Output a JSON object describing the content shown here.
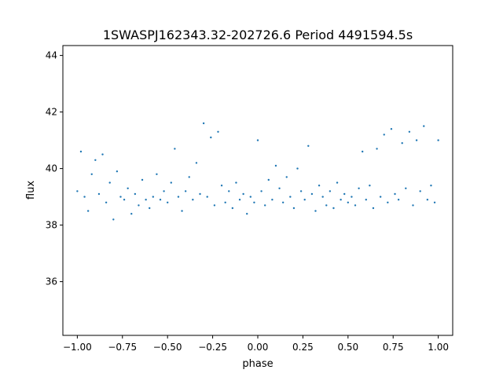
{
  "chart_data": {
    "type": "scatter",
    "title": "1SWASPJ162343.32-202726.6 Period 4491594.5s",
    "xlabel": "phase",
    "ylabel": "flux",
    "xlim": [
      -1.08,
      1.08
    ],
    "ylim": [
      34.1,
      44.35
    ],
    "xticks": [
      -1.0,
      -0.75,
      -0.5,
      -0.25,
      0.0,
      0.25,
      0.5,
      0.75,
      1.0
    ],
    "xtick_labels": [
      "−1.00",
      "−0.75",
      "−0.50",
      "−0.25",
      "0.00",
      "0.25",
      "0.50",
      "0.75",
      "1.00"
    ],
    "yticks": [
      36,
      38,
      40,
      42,
      44
    ],
    "ytick_labels": [
      "36",
      "38",
      "40",
      "42",
      "44"
    ],
    "grid": false,
    "marker_color": "#1f77b4",
    "series": [
      {
        "points": [
          [
            -1.0,
            39.2
          ],
          [
            -0.98,
            40.6
          ],
          [
            -0.96,
            39.0
          ],
          [
            -0.94,
            38.5
          ],
          [
            -0.92,
            39.8
          ],
          [
            -0.9,
            40.3
          ],
          [
            -0.88,
            39.1
          ],
          [
            -0.86,
            40.5
          ],
          [
            -0.84,
            38.8
          ],
          [
            -0.82,
            39.5
          ],
          [
            -0.8,
            38.2
          ],
          [
            -0.78,
            39.9
          ],
          [
            -0.76,
            39.0
          ],
          [
            -0.74,
            38.9
          ],
          [
            -0.72,
            39.3
          ],
          [
            -0.7,
            38.4
          ],
          [
            -0.68,
            39.1
          ],
          [
            -0.66,
            38.7
          ],
          [
            -0.64,
            39.6
          ],
          [
            -0.62,
            38.9
          ],
          [
            -0.6,
            38.6
          ],
          [
            -0.58,
            39.0
          ],
          [
            -0.56,
            39.8
          ],
          [
            -0.54,
            38.9
          ],
          [
            -0.52,
            39.2
          ],
          [
            -0.5,
            38.8
          ],
          [
            -0.48,
            39.5
          ],
          [
            -0.46,
            40.7
          ],
          [
            -0.44,
            39.0
          ],
          [
            -0.42,
            38.5
          ],
          [
            -0.4,
            39.2
          ],
          [
            -0.38,
            39.7
          ],
          [
            -0.36,
            38.9
          ],
          [
            -0.34,
            40.2
          ],
          [
            -0.32,
            39.1
          ],
          [
            -0.3,
            41.6
          ],
          [
            -0.28,
            39.0
          ],
          [
            -0.26,
            41.1
          ],
          [
            -0.24,
            38.7
          ],
          [
            -0.22,
            41.3
          ],
          [
            -0.2,
            39.4
          ],
          [
            -0.18,
            38.8
          ],
          [
            -0.16,
            39.2
          ],
          [
            -0.14,
            38.6
          ],
          [
            -0.12,
            39.5
          ],
          [
            -0.1,
            38.9
          ],
          [
            -0.08,
            39.1
          ],
          [
            -0.06,
            38.4
          ],
          [
            -0.04,
            39.0
          ],
          [
            -0.02,
            38.8
          ],
          [
            0.0,
            41.0
          ],
          [
            0.02,
            39.2
          ],
          [
            0.04,
            38.7
          ],
          [
            0.06,
            39.6
          ],
          [
            0.08,
            38.9
          ],
          [
            0.1,
            40.1
          ],
          [
            0.12,
            39.3
          ],
          [
            0.14,
            38.8
          ],
          [
            0.16,
            39.7
          ],
          [
            0.18,
            39.0
          ],
          [
            0.2,
            38.6
          ],
          [
            0.22,
            40.0
          ],
          [
            0.24,
            39.2
          ],
          [
            0.26,
            38.9
          ],
          [
            0.28,
            40.8
          ],
          [
            0.3,
            39.1
          ],
          [
            0.32,
            38.5
          ],
          [
            0.34,
            39.4
          ],
          [
            0.36,
            39.0
          ],
          [
            0.38,
            38.7
          ],
          [
            0.4,
            39.2
          ],
          [
            0.42,
            38.6
          ],
          [
            0.44,
            39.5
          ],
          [
            0.46,
            38.9
          ],
          [
            0.48,
            39.1
          ],
          [
            0.5,
            38.8
          ],
          [
            0.52,
            39.0
          ],
          [
            0.54,
            38.7
          ],
          [
            0.56,
            39.3
          ],
          [
            0.58,
            40.6
          ],
          [
            0.6,
            38.9
          ],
          [
            0.62,
            39.4
          ],
          [
            0.64,
            38.6
          ],
          [
            0.66,
            40.7
          ],
          [
            0.68,
            39.0
          ],
          [
            0.7,
            41.2
          ],
          [
            0.72,
            38.8
          ],
          [
            0.74,
            41.4
          ],
          [
            0.76,
            39.1
          ],
          [
            0.78,
            38.9
          ],
          [
            0.8,
            40.9
          ],
          [
            0.82,
            39.3
          ],
          [
            0.84,
            41.3
          ],
          [
            0.86,
            38.7
          ],
          [
            0.88,
            41.0
          ],
          [
            0.9,
            39.2
          ],
          [
            0.92,
            41.5
          ],
          [
            0.94,
            38.9
          ],
          [
            0.96,
            39.4
          ],
          [
            0.98,
            38.8
          ],
          [
            1.0,
            41.0
          ]
        ]
      }
    ]
  }
}
